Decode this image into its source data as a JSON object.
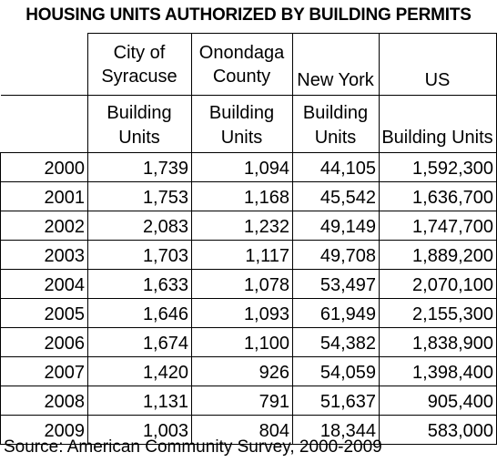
{
  "title": "HOUSING UNITS AUTHORIZED BY BUILDING PERMITS",
  "columns": [
    {
      "header_line1": "City of",
      "header_line2": "Syracuse",
      "sub_line1": "Building",
      "sub_line2": "Units"
    },
    {
      "header_line1": "Onondaga",
      "header_line2": "County",
      "sub_line1": "Building",
      "sub_line2": "Units"
    },
    {
      "header_line1": "",
      "header_line2": "New York",
      "sub_line1": "Building",
      "sub_line2": "Units"
    },
    {
      "header_line1": "",
      "header_line2": "US",
      "sub_line1": "",
      "sub_line2": "Building Units"
    }
  ],
  "rows": [
    {
      "year": "2000",
      "syracuse": "1,739",
      "onondaga": "1,094",
      "new_york": "44,105",
      "us": "1,592,300"
    },
    {
      "year": "2001",
      "syracuse": "1,753",
      "onondaga": "1,168",
      "new_york": "45,542",
      "us": "1,636,700"
    },
    {
      "year": "2002",
      "syracuse": "2,083",
      "onondaga": "1,232",
      "new_york": "49,149",
      "us": "1,747,700"
    },
    {
      "year": "2003",
      "syracuse": "1,703",
      "onondaga": "1,117",
      "new_york": "49,708",
      "us": "1,889,200"
    },
    {
      "year": "2004",
      "syracuse": "1,633",
      "onondaga": "1,078",
      "new_york": "53,497",
      "us": "2,070,100"
    },
    {
      "year": "2005",
      "syracuse": "1,646",
      "onondaga": "1,093",
      "new_york": "61,949",
      "us": "2,155,300"
    },
    {
      "year": "2006",
      "syracuse": "1,674",
      "onondaga": "1,100",
      "new_york": "54,382",
      "us": "1,838,900"
    },
    {
      "year": "2007",
      "syracuse": "1,420",
      "onondaga": "926",
      "new_york": "54,059",
      "us": "1,398,400"
    },
    {
      "year": "2008",
      "syracuse": "1,131",
      "onondaga": "791",
      "new_york": "51,637",
      "us": "905,400"
    },
    {
      "year": "2009",
      "syracuse": "1,003",
      "onondaga": "804",
      "new_york": "18,344",
      "us": "583,000"
    }
  ],
  "source": "Source: American Community Survey, 2000-2009"
}
